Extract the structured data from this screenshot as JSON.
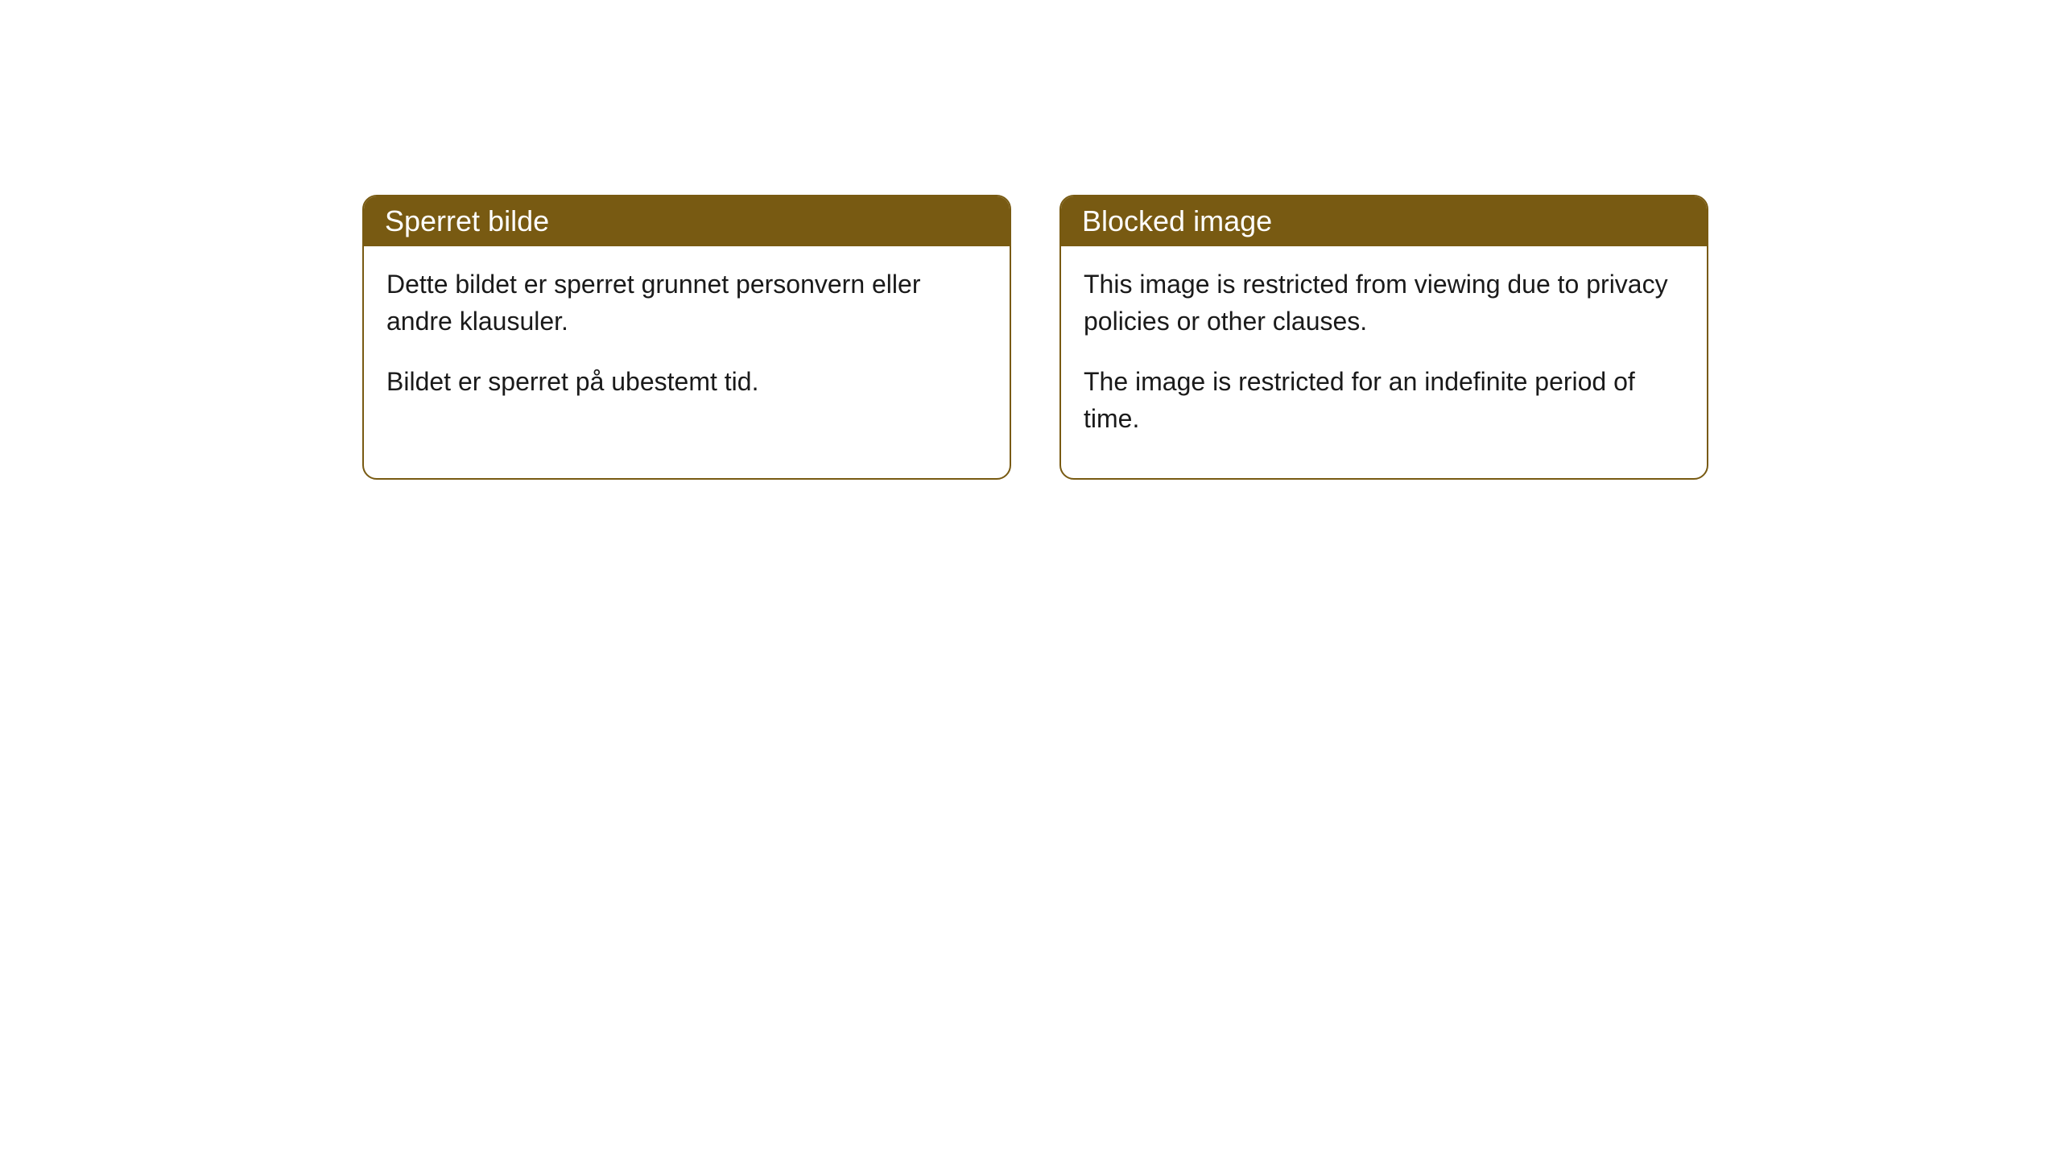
{
  "cards": [
    {
      "title": "Sperret bilde",
      "paragraph1": "Dette bildet er sperret grunnet personvern eller andre klausuler.",
      "paragraph2": "Bildet er sperret på ubestemt tid."
    },
    {
      "title": "Blocked image",
      "paragraph1": "This image is restricted from viewing due to privacy policies or other clauses.",
      "paragraph2": "The image is restricted for an indefinite period of time."
    }
  ],
  "style": {
    "header_bg_color": "#785a12",
    "header_text_color": "#ffffff",
    "border_color": "#785a12",
    "body_text_color": "#1a1a1a",
    "background_color": "#ffffff",
    "border_radius": 18,
    "title_fontsize": 36,
    "body_fontsize": 32
  }
}
